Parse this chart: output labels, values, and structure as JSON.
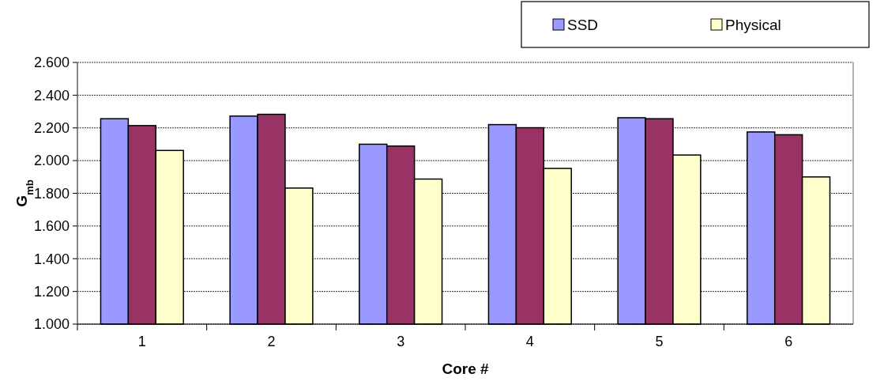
{
  "chart_data": {
    "type": "bar",
    "xlabel": "Core #",
    "ylabel": "G$_{mb}$",
    "categories": [
      "1",
      "2",
      "3",
      "4",
      "5",
      "6"
    ],
    "series": [
      {
        "name": "SSD",
        "color": "#9999ff",
        "values": [
          2.256,
          2.272,
          2.1,
          2.22,
          2.262,
          2.175
        ]
      },
      {
        "color": "#993366",
        "values": [
          2.214,
          2.283,
          2.089,
          2.201,
          2.256,
          2.158
        ]
      },
      {
        "name": "Physical",
        "color": "#ffffcc",
        "values": [
          2.062,
          1.832,
          1.887,
          1.952,
          2.034,
          1.9
        ]
      }
    ],
    "ylim": [
      1.0,
      2.6
    ],
    "yticks": [
      {
        "value": 1.0,
        "label": "1.000"
      },
      {
        "value": 1.2,
        "label": "1.200"
      },
      {
        "value": 1.4,
        "label": "1.400"
      },
      {
        "value": 1.6,
        "label": "1.600"
      },
      {
        "value": 1.8,
        "label": "1.800"
      },
      {
        "value": 2.0,
        "label": "2.000"
      },
      {
        "value": 2.2,
        "label": "2.200"
      },
      {
        "value": 2.4,
        "label": "2.400"
      },
      {
        "value": 2.6,
        "label": "2.600"
      }
    ],
    "grid": "y",
    "legend": "top right"
  }
}
